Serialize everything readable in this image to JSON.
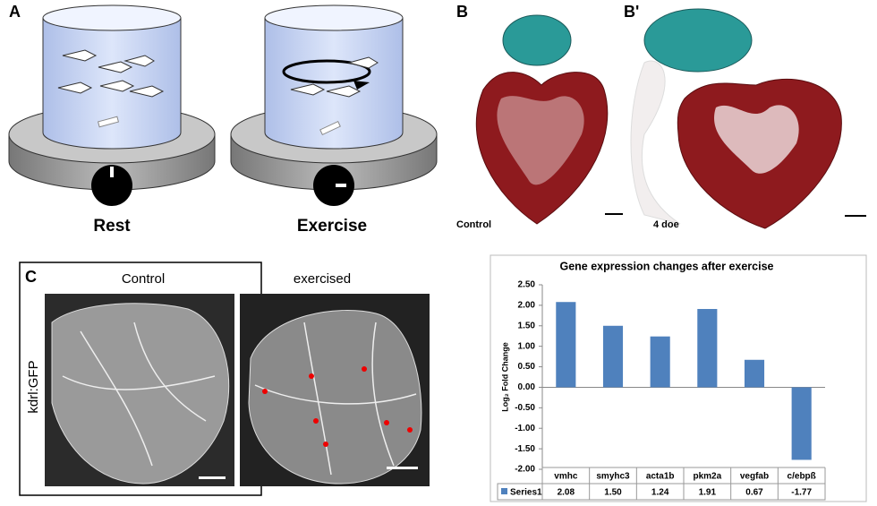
{
  "panel_a": {
    "label": "A",
    "conditions": [
      "Rest",
      "Exercise"
    ]
  },
  "panel_b": {
    "labels": [
      "B",
      "B'"
    ],
    "captions": [
      "Control",
      "4 doe"
    ]
  },
  "panel_c": {
    "label": "C",
    "columns": [
      "Control",
      "exercised"
    ],
    "row_label": "kdrl:GFP"
  },
  "chart_data": {
    "type": "bar",
    "title": "Gene expression changes after exercise",
    "y_label": "Log₂ Fold Change",
    "categories": [
      "vmhc",
      "smyhc3",
      "acta1b",
      "pkm2a",
      "vegfab",
      "c/ebpß"
    ],
    "series": [
      {
        "name": "Series1",
        "color": "#4f81bd",
        "values": [
          2.08,
          1.5,
          1.24,
          1.91,
          0.67,
          -1.77
        ],
        "value_labels": [
          "2.08",
          "1.50",
          "1.24",
          "1.91",
          "0.67",
          "-1.77"
        ]
      }
    ],
    "ylim": [
      -2,
      2.5
    ],
    "yticks": [
      {
        "value": 2.5,
        "label": "2.50"
      },
      {
        "value": 2,
        "label": "2.00"
      },
      {
        "value": 1.5,
        "label": "1.50"
      },
      {
        "value": 1,
        "label": "1.00"
      },
      {
        "value": 0.5,
        "label": "0.50"
      },
      {
        "value": 0,
        "label": "0.00"
      },
      {
        "value": -0.5,
        "label": "-0.50"
      },
      {
        "value": -1,
        "label": "-1.00"
      },
      {
        "value": -1.5,
        "label": "-1.50"
      },
      {
        "value": -2,
        "label": "-2.00"
      }
    ],
    "grid": false
  }
}
